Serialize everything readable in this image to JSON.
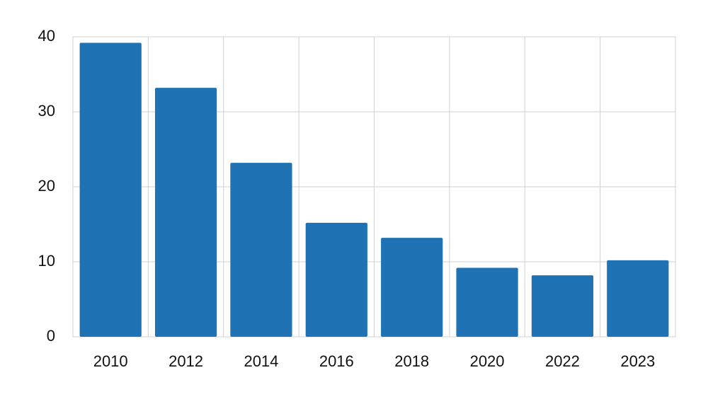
{
  "chart_data": {
    "type": "bar",
    "categories": [
      "2010",
      "2012",
      "2014",
      "2016",
      "2018",
      "2020",
      "2022",
      "2023"
    ],
    "values": [
      39.2,
      33.2,
      23.2,
      15.2,
      13.2,
      9.2,
      8.2,
      10.2
    ],
    "color": "#1f73b5",
    "ylim": [
      0,
      40
    ],
    "yticks": [
      0,
      10,
      20,
      30,
      40
    ],
    "grid": true
  }
}
